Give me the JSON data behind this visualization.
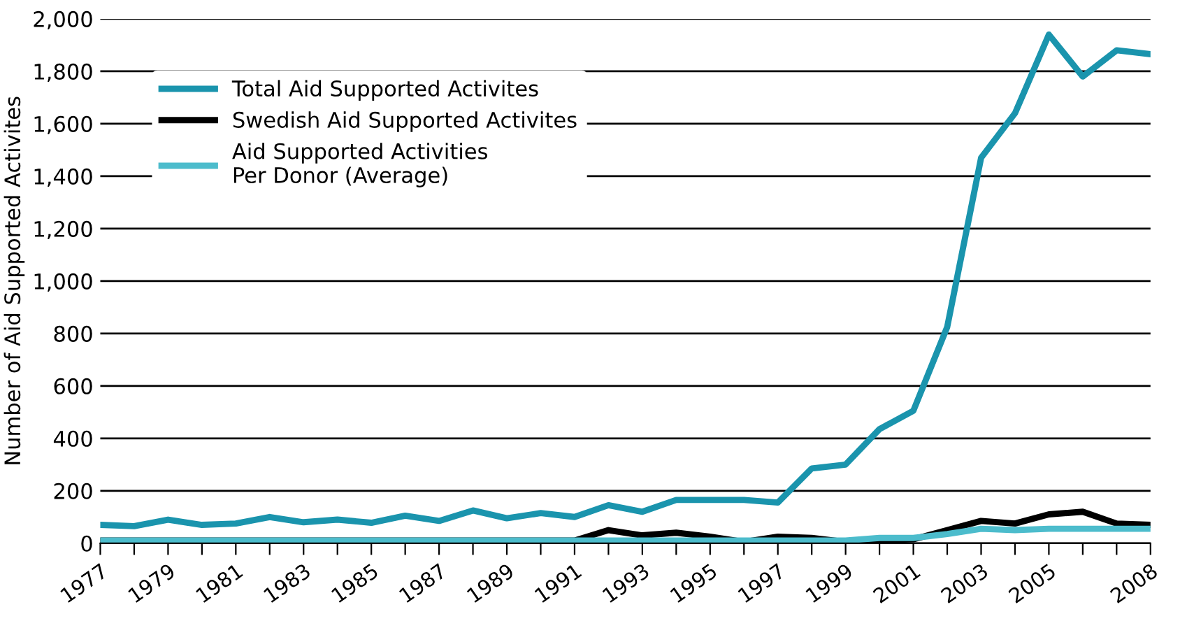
{
  "chart_data": {
    "type": "line",
    "ylabel": "Number of Aid Supported Activites",
    "x": [
      1977,
      1978,
      1979,
      1980,
      1981,
      1982,
      1983,
      1984,
      1985,
      1986,
      1987,
      1988,
      1989,
      1990,
      1991,
      1992,
      1993,
      1994,
      1995,
      1996,
      1997,
      1998,
      1999,
      2000,
      2001,
      2002,
      2003,
      2004,
      2005,
      2006,
      2007,
      2008
    ],
    "series": [
      {
        "name": "Total Aid Supported Activites",
        "color": "#1a94ad",
        "values": [
          70,
          65,
          90,
          70,
          75,
          100,
          80,
          90,
          78,
          105,
          85,
          125,
          95,
          115,
          100,
          145,
          120,
          165,
          165,
          165,
          155,
          285,
          300,
          435,
          505,
          825,
          1470,
          1640,
          1940,
          1780,
          1880,
          1865
        ]
      },
      {
        "name": "Swedish Aid Supported Activites",
        "color": "#000000",
        "values": [
          10,
          10,
          10,
          10,
          10,
          10,
          10,
          10,
          10,
          10,
          10,
          10,
          10,
          10,
          10,
          50,
          30,
          40,
          25,
          5,
          25,
          20,
          5,
          10,
          15,
          50,
          85,
          75,
          110,
          120,
          75,
          70
        ]
      },
      {
        "name": "Aid Supported Activities\nPer Donor (Average)",
        "color": "#4cbccc",
        "values": [
          10,
          10,
          10,
          10,
          10,
          10,
          10,
          10,
          10,
          10,
          10,
          10,
          10,
          10,
          10,
          10,
          10,
          10,
          10,
          10,
          10,
          10,
          10,
          20,
          20,
          35,
          55,
          50,
          55,
          55,
          55,
          55
        ]
      }
    ],
    "xlim": [
      1977,
      2008
    ],
    "xticks": [
      1977,
      {
        "value": 1978,
        "label": null
      },
      1979,
      {
        "value": 1980,
        "label": null
      },
      1981,
      {
        "value": 1982,
        "label": null
      },
      1983,
      {
        "value": 1984,
        "label": null
      },
      1985,
      {
        "value": 1986,
        "label": null
      },
      1987,
      {
        "value": 1988,
        "label": null
      },
      1989,
      {
        "value": 1990,
        "label": null
      },
      1991,
      {
        "value": 1992,
        "label": null
      },
      1993,
      {
        "value": 1994,
        "label": null
      },
      1995,
      {
        "value": 1996,
        "label": null
      },
      1997,
      {
        "value": 1998,
        "label": null
      },
      1999,
      {
        "value": 2000,
        "label": null
      },
      2001,
      {
        "value": 2002,
        "label": null
      },
      2003,
      {
        "value": 2004,
        "label": null
      },
      2005,
      {
        "value": 2006,
        "label": null
      },
      {
        "value": 2007,
        "label": null
      },
      2008
    ],
    "ylim": [
      0,
      2000
    ],
    "yticks": [
      0,
      {
        "value": 200,
        "label": "200"
      },
      {
        "value": 400,
        "label": "400"
      },
      {
        "value": 600,
        "label": "600"
      },
      {
        "value": 800,
        "label": "800"
      },
      {
        "value": 1000,
        "label": "1,000"
      },
      {
        "value": 1200,
        "label": "1,200"
      },
      {
        "value": 1400,
        "label": "1,400"
      },
      {
        "value": 1600,
        "label": "1,600"
      },
      {
        "value": 1800,
        "label": "1,800"
      },
      {
        "value": 2000,
        "label": "2,000"
      }
    ],
    "grid": "y",
    "legend": "top left",
    "marker": "none",
    "line_style": "solid"
  }
}
